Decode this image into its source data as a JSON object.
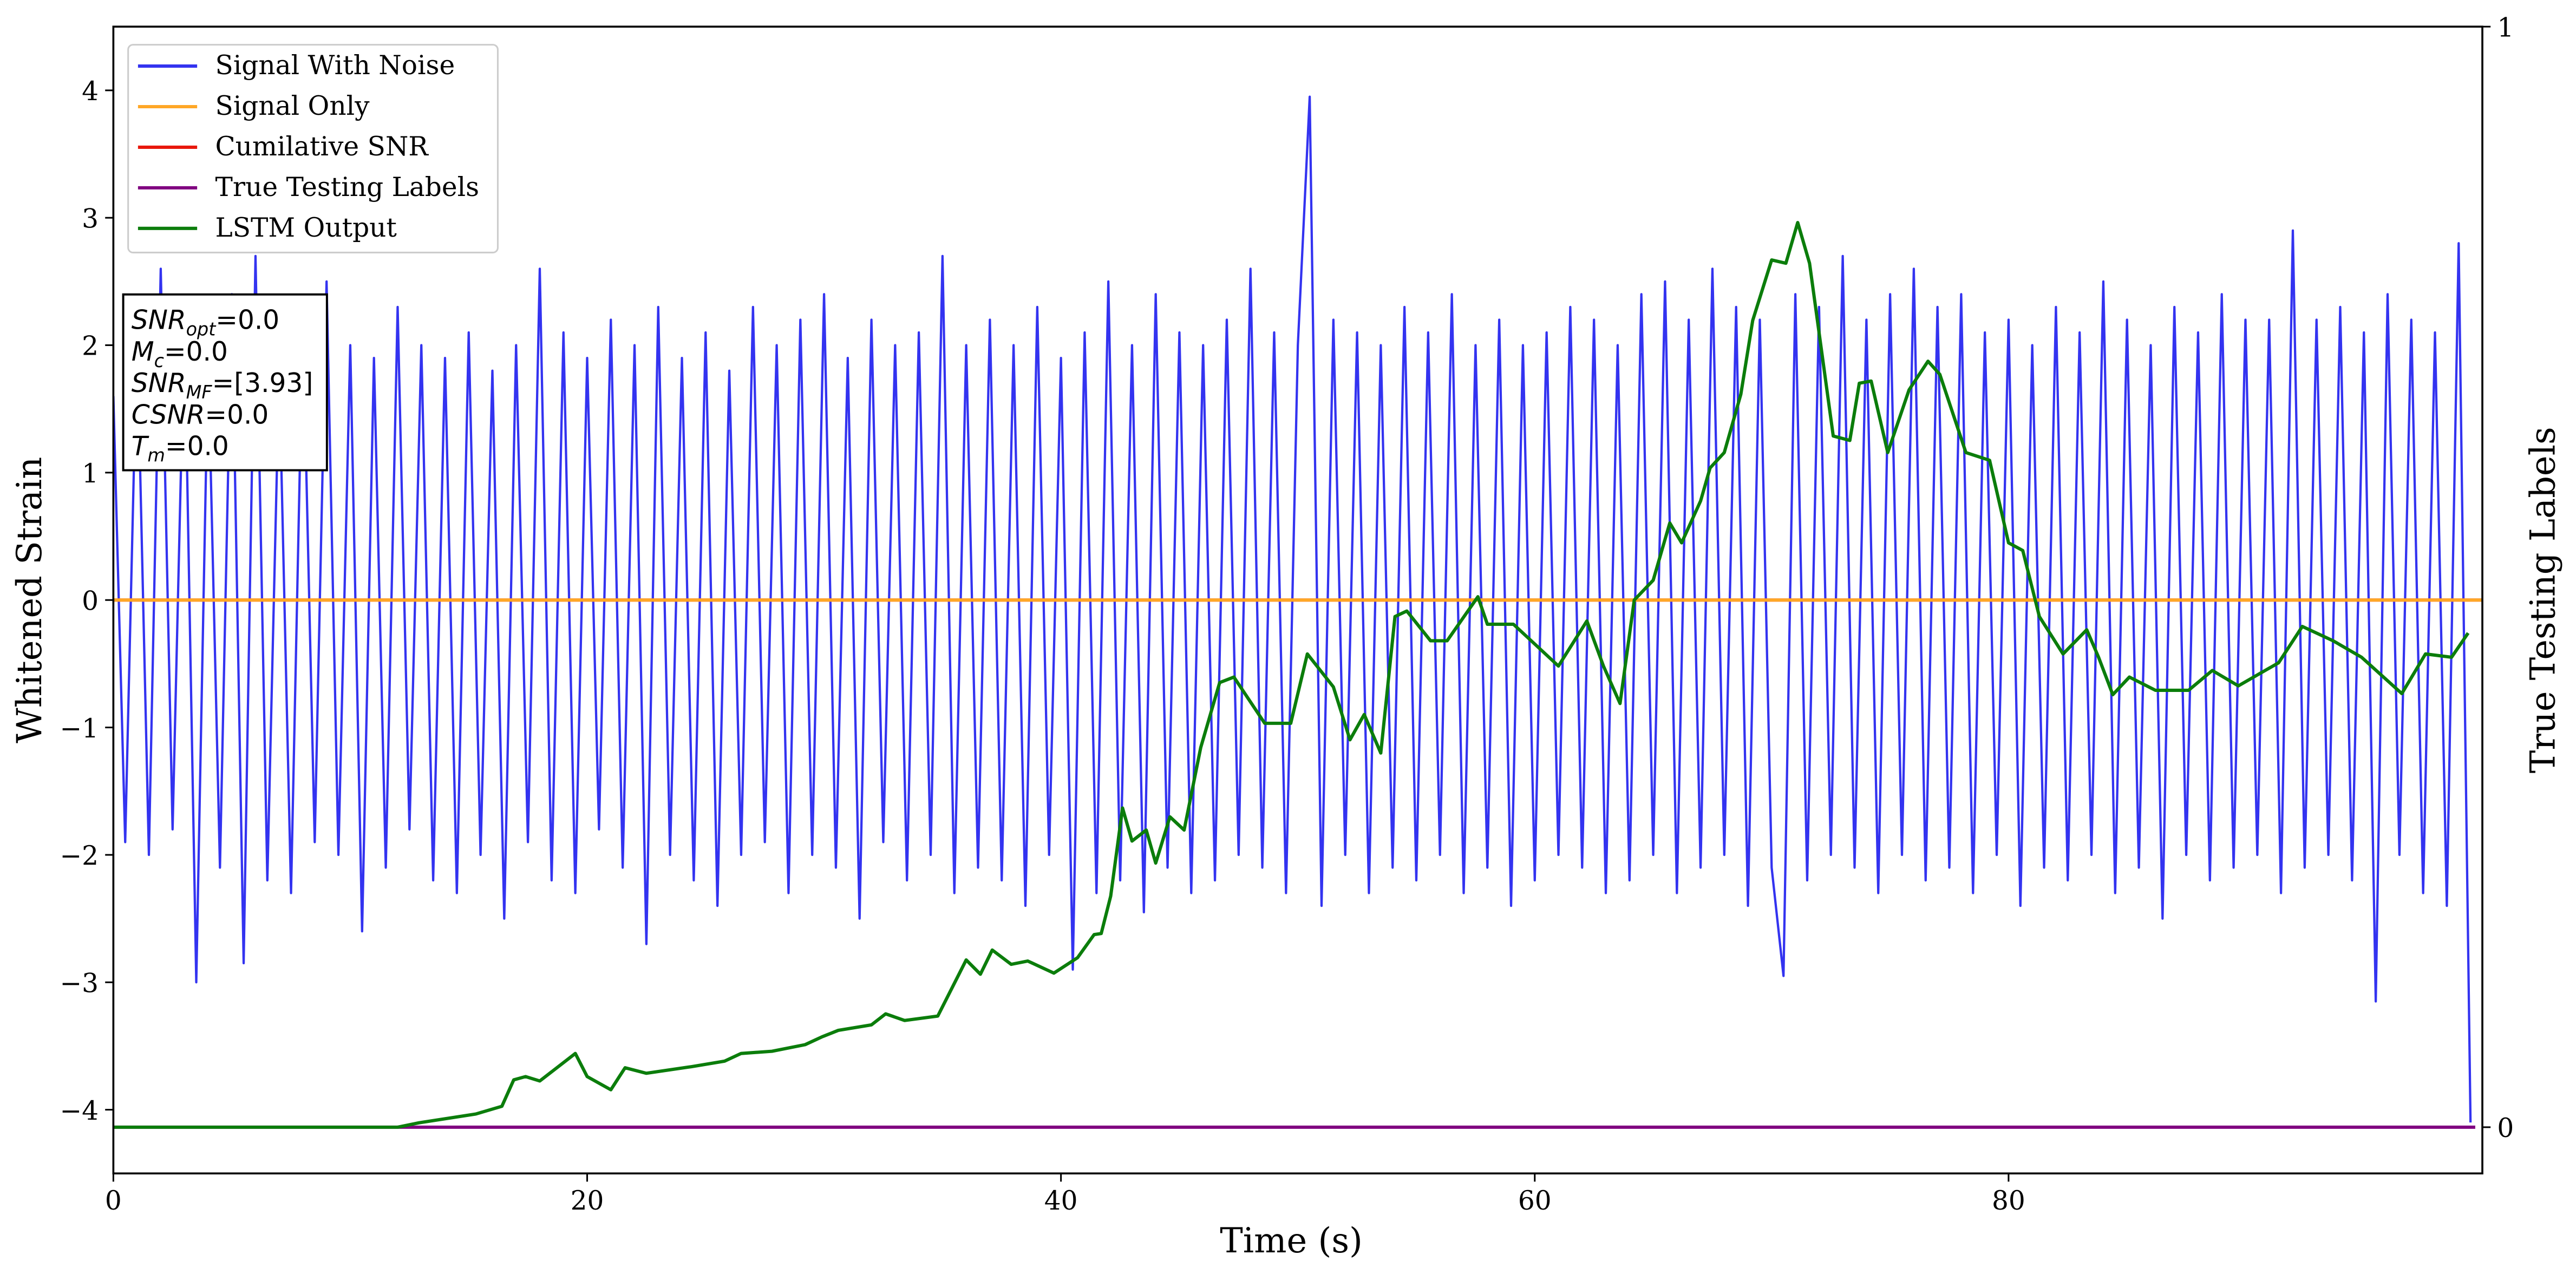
{
  "chart_data": {
    "type": "line",
    "xlabel": "Time (s)",
    "ylabel": "Whitened Strain",
    "y2label": "True Testing Labels",
    "xlim": [
      0,
      100
    ],
    "xticks": [
      0,
      20,
      40,
      60,
      80
    ],
    "ylim": [
      -4.5,
      4.5
    ],
    "yticks": [
      {
        "value": -4,
        "label": "−4"
      },
      {
        "value": -3,
        "label": "−3"
      },
      {
        "value": -2,
        "label": "−2"
      },
      {
        "value": -1,
        "label": "−1"
      },
      0,
      1,
      2,
      3,
      4
    ],
    "y2lim": [
      -0.042,
      1
    ],
    "y2ticks": [
      0,
      1
    ],
    "legend": "upper left",
    "textbox": [
      {
        "name": "SNR",
        "sub": "opt",
        "rest": "=0.0"
      },
      {
        "name": "M",
        "sub": "c",
        "rest": "=0.0"
      },
      {
        "name": "SNR",
        "sub": "MF",
        "rest": "=[3.93]"
      },
      {
        "name": "CSNR",
        "rest": "=0.0"
      },
      {
        "name": "T",
        "sub": "m",
        "rest": "=0.0"
      }
    ],
    "series": [
      {
        "name": "Signal With Noise",
        "color": "#3333f0",
        "x": [
          0,
          0.5,
          1,
          1.5,
          2,
          2.5,
          3,
          3.5,
          4,
          4.5,
          5,
          5.5,
          6,
          6.5,
          7,
          7.5,
          8,
          8.5,
          9,
          9.5,
          10,
          10.5,
          11,
          11.5,
          12,
          12.5,
          13,
          13.5,
          14,
          14.5,
          15,
          15.5,
          16,
          16.5,
          17,
          17.5,
          18,
          18.5,
          19,
          19.5,
          20,
          20.5,
          21,
          21.5,
          22,
          22.5,
          23,
          23.5,
          24,
          24.5,
          25,
          25.5,
          26,
          26.5,
          27,
          27.5,
          28,
          28.5,
          29,
          29.5,
          30,
          30.5,
          31,
          31.5,
          32,
          32.5,
          33,
          33.5,
          34,
          34.5,
          35,
          35.5,
          36,
          36.5,
          37,
          37.5,
          38,
          38.5,
          39,
          39.5,
          40,
          40.5,
          41,
          41.5,
          42,
          42.5,
          43,
          43.5,
          44,
          44.5,
          45,
          45.5,
          46,
          46.5,
          47,
          47.5,
          48,
          48.5,
          49,
          49.5,
          50,
          50.5,
          51,
          51.5,
          52,
          52.5,
          53,
          53.5,
          54,
          54.5,
          55,
          55.5,
          56,
          56.5,
          57,
          57.5,
          58,
          58.5,
          59,
          59.5,
          60,
          60.5,
          61,
          61.5,
          62,
          62.5,
          63,
          63.5,
          64,
          64.5,
          65,
          65.5,
          66,
          66.5,
          67,
          67.5,
          68,
          68.5,
          69,
          69.5,
          70,
          70.5,
          71,
          71.5,
          72,
          72.5,
          73,
          73.5,
          74,
          74.5,
          75,
          75.5,
          76,
          76.5,
          77,
          77.5,
          78,
          78.5,
          79,
          79.5,
          80,
          80.5,
          81,
          81.5,
          82,
          82.5,
          83,
          83.5,
          84,
          84.5,
          85,
          85.5,
          86,
          86.5,
          87,
          87.5,
          88,
          88.5,
          89,
          89.5,
          90,
          90.5,
          91,
          91.5,
          92,
          92.5,
          93,
          93.5,
          94,
          94.5,
          95,
          95.5,
          96,
          96.5,
          97,
          97.5,
          98,
          98.5,
          99,
          99.5
        ],
        "values": [
          1.6,
          -1.9,
          2.1,
          -2.0,
          2.6,
          -1.8,
          2.2,
          -3.0,
          1.9,
          -2.1,
          2.4,
          -2.85,
          2.7,
          -2.2,
          1.8,
          -2.3,
          2.2,
          -1.9,
          2.5,
          -2.0,
          2.0,
          -2.6,
          1.9,
          -2.1,
          2.3,
          -1.8,
          2.0,
          -2.2,
          1.9,
          -2.3,
          2.1,
          -2.0,
          1.8,
          -2.5,
          2.0,
          -1.9,
          2.6,
          -2.2,
          2.1,
          -2.3,
          1.9,
          -1.8,
          2.2,
          -2.1,
          2.0,
          -2.7,
          2.3,
          -2.0,
          1.9,
          -2.2,
          2.1,
          -2.4,
          1.8,
          -2.0,
          2.3,
          -1.9,
          2.0,
          -2.3,
          2.2,
          -2.0,
          2.4,
          -2.1,
          1.9,
          -2.5,
          2.2,
          -1.9,
          2.0,
          -2.2,
          2.1,
          -2.0,
          2.7,
          -2.3,
          2.0,
          -2.1,
          2.2,
          -2.2,
          2.0,
          -2.4,
          2.3,
          -2.0,
          1.9,
          -2.9,
          2.1,
          -2.3,
          2.5,
          -2.2,
          2.0,
          -2.45,
          2.4,
          -2.1,
          2.1,
          -2.3,
          2.0,
          -2.2,
          2.2,
          -2.0,
          2.6,
          -2.1,
          2.1,
          -2.3,
          2.0,
          3.95,
          -2.4,
          2.2,
          -2.0,
          2.1,
          -2.3,
          2.0,
          -2.1,
          2.3,
          -2.2,
          2.1,
          -2.0,
          2.4,
          -2.3,
          2.0,
          -2.1,
          2.2,
          -2.4,
          2.0,
          -2.2,
          2.1,
          -2.0,
          2.3,
          -2.1,
          2.2,
          -2.3,
          2.0,
          -2.2,
          2.4,
          -2.0,
          2.5,
          -2.3,
          2.2,
          -2.1,
          2.6,
          -2.0,
          2.3,
          -2.4,
          2.2,
          -2.1,
          -2.95,
          2.4,
          -2.2,
          2.3,
          -2.0,
          2.7,
          -2.1,
          2.2,
          -2.3,
          2.4,
          -2.0,
          2.6,
          -2.2,
          2.3,
          -2.1,
          2.4,
          -2.3,
          2.1,
          -2.0,
          2.2,
          -2.4,
          2.0,
          -2.1,
          2.3,
          -2.2,
          2.1,
          -2.0,
          2.5,
          -2.3,
          2.2,
          -2.1,
          2.0,
          -2.5,
          2.3,
          -2.0,
          2.1,
          -2.2,
          2.4,
          -2.1,
          2.2,
          -2.0,
          2.2,
          -2.3,
          2.9,
          -2.1,
          2.2,
          -2.0,
          2.3,
          -2.2,
          2.1,
          -3.15,
          2.4,
          -2.0,
          2.2,
          -2.3,
          2.1,
          -2.4,
          2.8,
          -4.1
        ]
      },
      {
        "name": "Signal Only",
        "color": "#ffa726",
        "x": [
          0,
          100
        ],
        "values": [
          0,
          0
        ]
      },
      {
        "name": "Cumilative SNR",
        "color": "#e8180c",
        "x": [
          0,
          100
        ],
        "values": [
          0,
          0
        ]
      },
      {
        "name": "True Testing Labels",
        "color": "#800080",
        "axis": "y2",
        "x": [
          0,
          99.7
        ],
        "values": [
          0,
          0
        ]
      },
      {
        "name": "LSTM Output",
        "color": "#0b7d0b",
        "axis": "y2",
        "x": [
          0,
          12,
          12.9,
          15.3,
          16.4,
          16.9,
          17.4,
          18,
          19.5,
          20,
          21,
          21.6,
          22.5,
          24.4,
          25.8,
          26.5,
          27.8,
          29.2,
          29.9,
          30.6,
          32,
          32.6,
          33.4,
          34.8,
          36,
          36.6,
          37.1,
          37.9,
          38.6,
          39.7,
          40.7,
          41.4,
          41.7,
          42.1,
          42.6,
          43,
          43.6,
          44,
          44.6,
          45.2,
          45.9,
          46.7,
          47.3,
          48.6,
          49.7,
          50.4,
          51.5,
          52.2,
          52.8,
          53.5,
          54.1,
          54.6,
          55.6,
          56.3,
          57.6,
          58,
          59.1,
          60.1,
          61,
          62.2,
          62.9,
          63.6,
          64.2,
          65,
          65.7,
          66.2,
          67,
          67.4,
          68,
          68.7,
          69.2,
          70,
          70.6,
          71.1,
          71.6,
          72.6,
          73.3,
          73.7,
          74.2,
          74.9,
          75.8,
          76.6,
          77.1,
          78.2,
          79.2,
          80,
          80.6,
          81.3,
          82.3,
          83.3,
          83.8,
          84.4,
          85.1,
          86.2,
          87.6,
          88.6,
          89.7,
          91.4,
          92.4,
          93.7,
          94.9,
          96.6,
          97.6,
          98.7,
          99.4
        ],
        "values": [
          0,
          0,
          0.004,
          0.012,
          0.019,
          0.043,
          0.046,
          0.042,
          0.067,
          0.046,
          0.034,
          0.054,
          0.049,
          0.055,
          0.06,
          0.067,
          0.069,
          0.075,
          0.082,
          0.088,
          0.093,
          0.103,
          0.097,
          0.101,
          0.152,
          0.139,
          0.161,
          0.148,
          0.151,
          0.14,
          0.154,
          0.175,
          0.176,
          0.21,
          0.29,
          0.26,
          0.27,
          0.24,
          0.282,
          0.27,
          0.345,
          0.404,
          0.409,
          0.367,
          0.367,
          0.43,
          0.4,
          0.352,
          0.375,
          0.34,
          0.464,
          0.469,
          0.442,
          0.442,
          0.482,
          0.457,
          0.457,
          0.437,
          0.419,
          0.46,
          0.419,
          0.385,
          0.479,
          0.497,
          0.549,
          0.531,
          0.569,
          0.599,
          0.613,
          0.666,
          0.733,
          0.788,
          0.785,
          0.822,
          0.785,
          0.628,
          0.624,
          0.676,
          0.678,
          0.613,
          0.67,
          0.696,
          0.684,
          0.613,
          0.606,
          0.531,
          0.524,
          0.464,
          0.43,
          0.452,
          0.427,
          0.393,
          0.409,
          0.397,
          0.397,
          0.415,
          0.401,
          0.422,
          0.455,
          0.442,
          0.427,
          0.394,
          0.43,
          0.427,
          0.449
        ]
      }
    ]
  }
}
